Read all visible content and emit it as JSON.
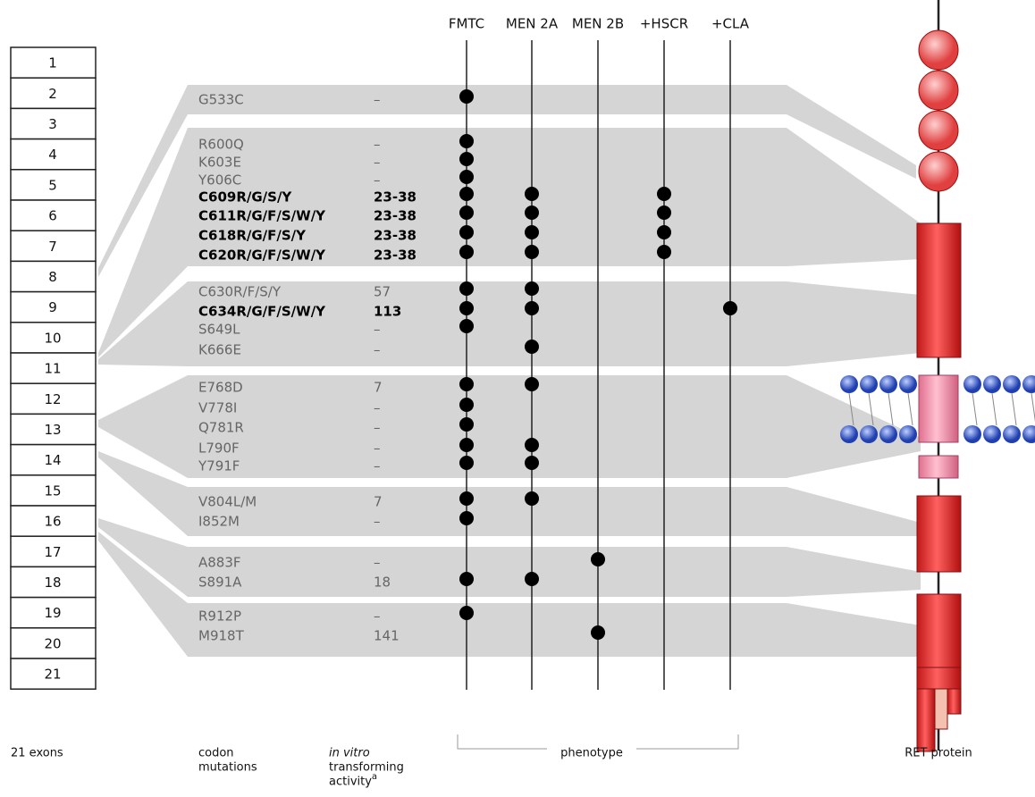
{
  "exons": [
    "1",
    "2",
    "3",
    "4",
    "5",
    "6",
    "7",
    "8",
    "9",
    "10",
    "11",
    "12",
    "13",
    "14",
    "15",
    "16",
    "17",
    "18",
    "19",
    "20",
    "21"
  ],
  "phenotypes": [
    "FMTC",
    "MEN 2A",
    "MEN 2B",
    "+HSCR",
    "+CLA"
  ],
  "groups": [
    {
      "mutations": [
        {
          "codon": "G533C",
          "activity": "–",
          "bold": false,
          "dots": [
            true,
            false,
            false,
            false,
            false
          ]
        }
      ]
    },
    {
      "mutations": [
        {
          "codon": "R600Q",
          "activity": "–",
          "bold": false,
          "dots": [
            true,
            false,
            false,
            false,
            false
          ]
        },
        {
          "codon": "K603E",
          "activity": "–",
          "bold": false,
          "dots": [
            true,
            false,
            false,
            false,
            false
          ]
        },
        {
          "codon": "Y606C",
          "activity": "–",
          "bold": false,
          "dots": [
            true,
            false,
            false,
            false,
            false
          ]
        },
        {
          "codon": "C609R/G/S/Y",
          "activity": "23-38",
          "bold": true,
          "dots": [
            true,
            true,
            false,
            true,
            false
          ]
        },
        {
          "codon": "C611R/G/F/S/W/Y",
          "activity": "23-38",
          "bold": true,
          "dots": [
            true,
            true,
            false,
            true,
            false
          ]
        },
        {
          "codon": "C618R/G/F/S/Y",
          "activity": "23-38",
          "bold": true,
          "dots": [
            true,
            true,
            false,
            true,
            false
          ]
        },
        {
          "codon": "C620R/G/F/S/W/Y",
          "activity": "23-38",
          "bold": true,
          "dots": [
            true,
            true,
            false,
            true,
            false
          ]
        }
      ]
    },
    {
      "mutations": [
        {
          "codon": "C630R/F/S/Y",
          "activity": "57",
          "bold": false,
          "dots": [
            true,
            true,
            false,
            false,
            false
          ]
        },
        {
          "codon": "C634R/G/F/S/W/Y",
          "activity": "113",
          "bold": true,
          "dots": [
            true,
            true,
            false,
            false,
            true
          ]
        },
        {
          "codon": "S649L",
          "activity": "–",
          "bold": false,
          "dots": [
            true,
            false,
            false,
            false,
            false
          ]
        },
        {
          "codon": "K666E",
          "activity": "–",
          "bold": false,
          "dots": [
            false,
            true,
            false,
            false,
            false
          ]
        }
      ]
    },
    {
      "mutations": [
        {
          "codon": "E768D",
          "activity": "7",
          "bold": false,
          "dots": [
            true,
            true,
            false,
            false,
            false
          ]
        },
        {
          "codon": "V778I",
          "activity": "–",
          "bold": false,
          "dots": [
            true,
            false,
            false,
            false,
            false
          ]
        },
        {
          "codon": "Q781R",
          "activity": "–",
          "bold": false,
          "dots": [
            true,
            false,
            false,
            false,
            false
          ]
        },
        {
          "codon": "L790F",
          "activity": "–",
          "bold": false,
          "dots": [
            true,
            true,
            false,
            false,
            false
          ]
        },
        {
          "codon": "Y791F",
          "activity": "–",
          "bold": false,
          "dots": [
            true,
            true,
            false,
            false,
            false
          ]
        }
      ]
    },
    {
      "mutations": [
        {
          "codon": "V804L/M",
          "activity": "7",
          "bold": false,
          "dots": [
            true,
            true,
            false,
            false,
            false
          ]
        },
        {
          "codon": "I852M",
          "activity": "–",
          "bold": false,
          "dots": [
            true,
            false,
            false,
            false,
            false
          ]
        }
      ]
    },
    {
      "mutations": [
        {
          "codon": "A883F",
          "activity": "–",
          "bold": false,
          "dots": [
            false,
            false,
            true,
            false,
            false
          ]
        },
        {
          "codon": "S891A",
          "activity": "18",
          "bold": false,
          "dots": [
            true,
            true,
            false,
            false,
            false
          ]
        }
      ]
    },
    {
      "mutations": [
        {
          "codon": "R912P",
          "activity": "–",
          "bold": false,
          "dots": [
            true,
            false,
            false,
            false,
            false
          ]
        },
        {
          "codon": "M918T",
          "activity": "141",
          "bold": false,
          "dots": [
            false,
            false,
            true,
            false,
            false
          ]
        }
      ]
    }
  ],
  "labels": {
    "exons": "21 exons",
    "codon": [
      "codon",
      "mutations"
    ],
    "activity": {
      "italic": "in vitro",
      "lines": [
        "transforming",
        "activity"
      ],
      "sup": "a"
    },
    "phenotype": "phenotype",
    "protein": "RET protein"
  }
}
